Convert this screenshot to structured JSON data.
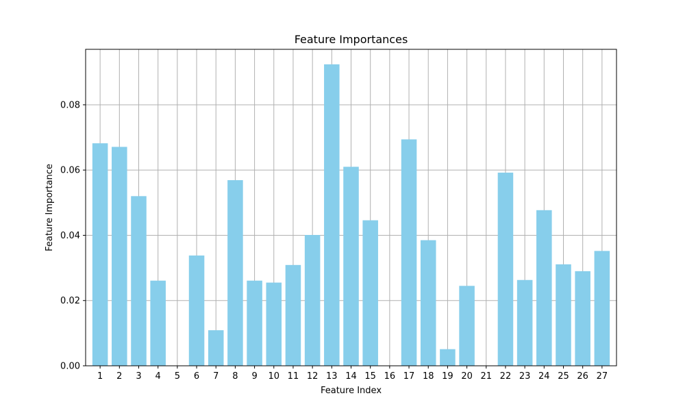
{
  "chart_data": {
    "type": "bar",
    "title": "Feature Importances",
    "xlabel": "Feature Index",
    "ylabel": "Feature Importance",
    "categories": [
      "1",
      "2",
      "3",
      "4",
      "5",
      "6",
      "7",
      "8",
      "9",
      "10",
      "11",
      "12",
      "13",
      "14",
      "15",
      "16",
      "17",
      "18",
      "19",
      "20",
      "21",
      "22",
      "23",
      "24",
      "25",
      "26",
      "27"
    ],
    "values": [
      0.0682,
      0.0671,
      0.052,
      0.0261,
      0.0,
      0.0338,
      0.0109,
      0.0569,
      0.0261,
      0.0255,
      0.0309,
      0.0401,
      0.0924,
      0.061,
      0.0446,
      0.0,
      0.0694,
      0.0385,
      0.0051,
      0.0245,
      0.0,
      0.0592,
      0.0263,
      0.0477,
      0.0311,
      0.029,
      0.0352
    ],
    "ylim": [
      0,
      0.097
    ],
    "yticks": [
      0.0,
      0.02,
      0.04,
      0.06,
      0.08
    ],
    "ytick_labels": [
      "0.00",
      "0.02",
      "0.04",
      "0.06",
      "0.08"
    ],
    "grid": true,
    "bar_color": "#87ceeb",
    "grid_color": "#b0b0b0"
  }
}
